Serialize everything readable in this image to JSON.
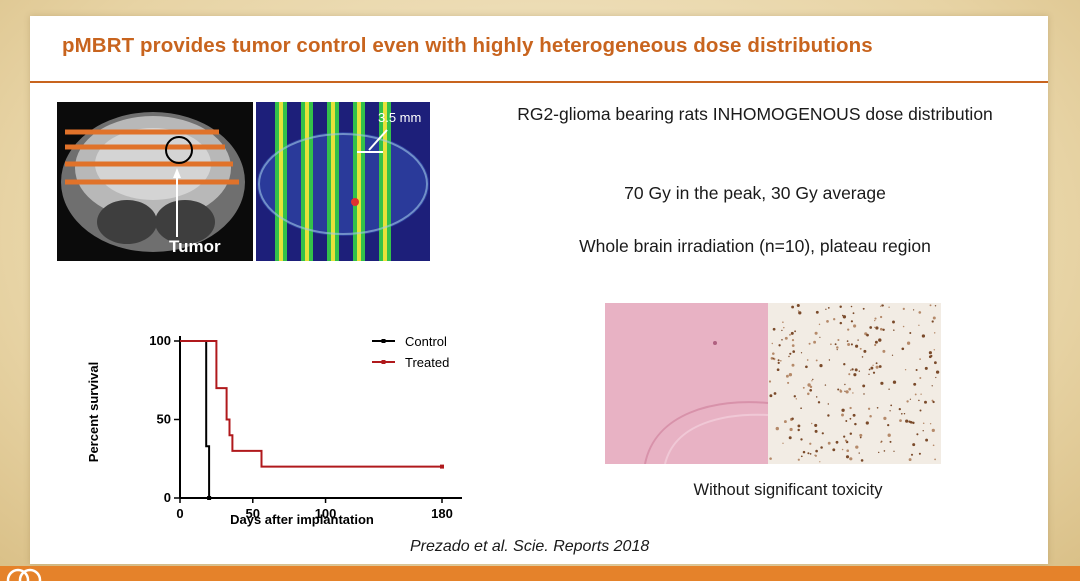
{
  "slide": {
    "title": "pMBRT provides tumor control even with highly heterogeneous dose distributions",
    "accent_color": "#c8641e",
    "footer_color": "#e5822a"
  },
  "mri_figure": {
    "tumor_label": "Tumor",
    "spacing_label": "3.5 mm"
  },
  "info": {
    "line1": "RG2-glioma bearing rats INHOMOGENOUS dose distribution",
    "line2": "70 Gy in the peak,  30 Gy average",
    "line3": "Whole brain irradiation (n=10), plateau region"
  },
  "chart_data": {
    "type": "line",
    "step": true,
    "ylabel": "Percent survival",
    "xlabel": "Days after implantation",
    "xticks": [
      "0",
      "50",
      "100",
      "180"
    ],
    "yticks": [
      "0",
      "50",
      "100"
    ],
    "legend_position": "top-right",
    "series": [
      {
        "name": "Control",
        "color": "#000000",
        "points": [
          [
            0,
            100
          ],
          [
            18,
            100
          ],
          [
            18,
            33
          ],
          [
            20,
            33
          ],
          [
            20,
            0
          ]
        ]
      },
      {
        "name": "Treated",
        "color": "#b0191c",
        "points": [
          [
            0,
            100
          ],
          [
            25,
            100
          ],
          [
            25,
            70
          ],
          [
            32,
            70
          ],
          [
            32,
            50
          ],
          [
            34,
            50
          ],
          [
            34,
            40
          ],
          [
            36,
            40
          ],
          [
            36,
            30
          ],
          [
            56,
            30
          ],
          [
            56,
            20
          ],
          [
            180,
            20
          ]
        ]
      }
    ]
  },
  "histology": {
    "caption": "Without significant toxicity"
  },
  "reference": "Prezado et al. Scie. Reports 2018"
}
